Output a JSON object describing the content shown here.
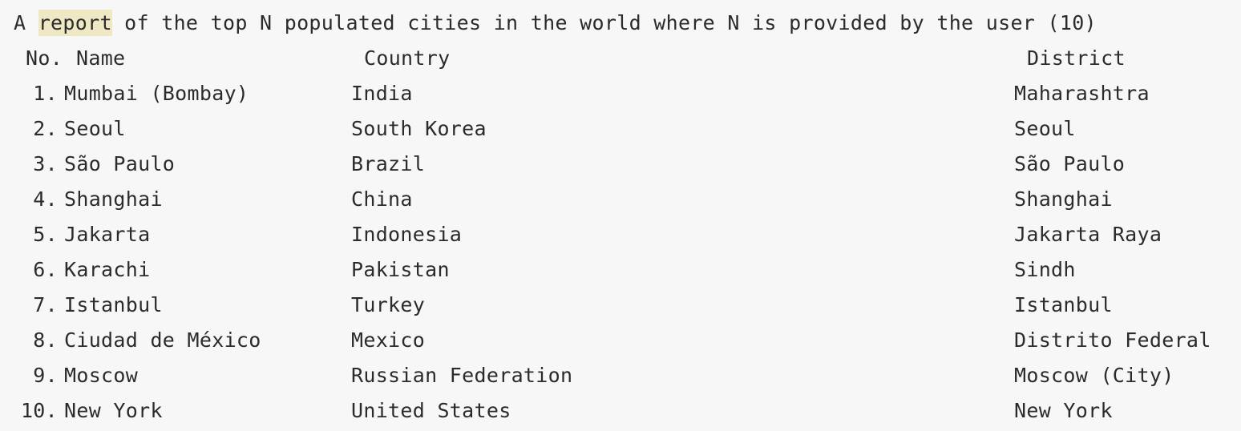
{
  "title": {
    "before": "A ",
    "highlight": "report",
    "after": " of the top N populated cities in the world where N is provided by the user (10)"
  },
  "table": {
    "headers": {
      "no": "No.",
      "name": "Name",
      "country": "Country",
      "district": "District"
    },
    "rows": [
      {
        "no": "1.",
        "name": "Mumbai (Bombay)",
        "country": "India",
        "district": "Maharashtra"
      },
      {
        "no": "2.",
        "name": "Seoul",
        "country": "South Korea",
        "district": "Seoul"
      },
      {
        "no": "3.",
        "name": "São Paulo",
        "country": "Brazil",
        "district": "São Paulo"
      },
      {
        "no": "4.",
        "name": "Shanghai",
        "country": "China",
        "district": "Shanghai"
      },
      {
        "no": "5.",
        "name": "Jakarta",
        "country": "Indonesia",
        "district": "Jakarta Raya"
      },
      {
        "no": "6.",
        "name": "Karachi",
        "country": "Pakistan",
        "district": "Sindh"
      },
      {
        "no": "7.",
        "name": "Istanbul",
        "country": "Turkey",
        "district": "Istanbul"
      },
      {
        "no": "8.",
        "name": "Ciudad de México",
        "country": "Mexico",
        "district": "Distrito Federal"
      },
      {
        "no": "9.",
        "name": "Moscow",
        "country": "Russian Federation",
        "district": "Moscow (City)"
      },
      {
        "no": "10.",
        "name": "New York",
        "country": "United States",
        "district": "New York"
      }
    ]
  }
}
